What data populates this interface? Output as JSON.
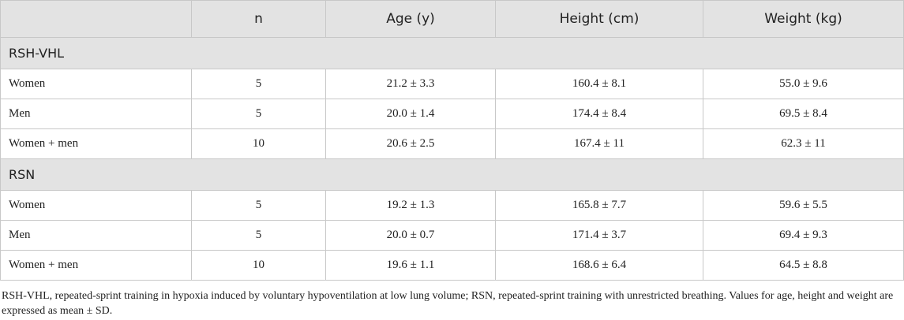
{
  "table": {
    "headers": [
      "",
      "n",
      "Age (y)",
      "Height (cm)",
      "Weight (kg)"
    ],
    "groups": [
      {
        "name": "RSH-VHL",
        "rows": [
          {
            "label": "Women",
            "n": "5",
            "age": "21.2 ± 3.3",
            "height": "160.4 ± 8.1",
            "weight": "55.0 ± 9.6"
          },
          {
            "label": "Men",
            "n": "5",
            "age": "20.0 ± 1.4",
            "height": "174.4 ± 8.4",
            "weight": "69.5 ± 8.4"
          },
          {
            "label": "Women + men",
            "n": "10",
            "age": "20.6 ± 2.5",
            "height": "167.4 ± 11",
            "weight": "62.3 ± 11"
          }
        ]
      },
      {
        "name": "RSN",
        "rows": [
          {
            "label": "Women",
            "n": "5",
            "age": "19.2 ± 1.3",
            "height": "165.8 ± 7.7",
            "weight": "59.6 ± 5.5"
          },
          {
            "label": "Men",
            "n": "5",
            "age": "20.0 ± 0.7",
            "height": "171.4 ± 3.7",
            "weight": "69.4 ± 9.3"
          },
          {
            "label": "Women + men",
            "n": "10",
            "age": "19.6 ± 1.1",
            "height": "168.6 ± 6.4",
            "weight": "64.5 ± 8.8"
          }
        ]
      }
    ]
  },
  "footnote": "RSH-VHL, repeated-sprint training in hypoxia induced by voluntary hypoventilation at low lung volume; RSN, repeated-sprint training with unrestricted breathing. Values for age, height and weight are expressed as mean ± SD."
}
